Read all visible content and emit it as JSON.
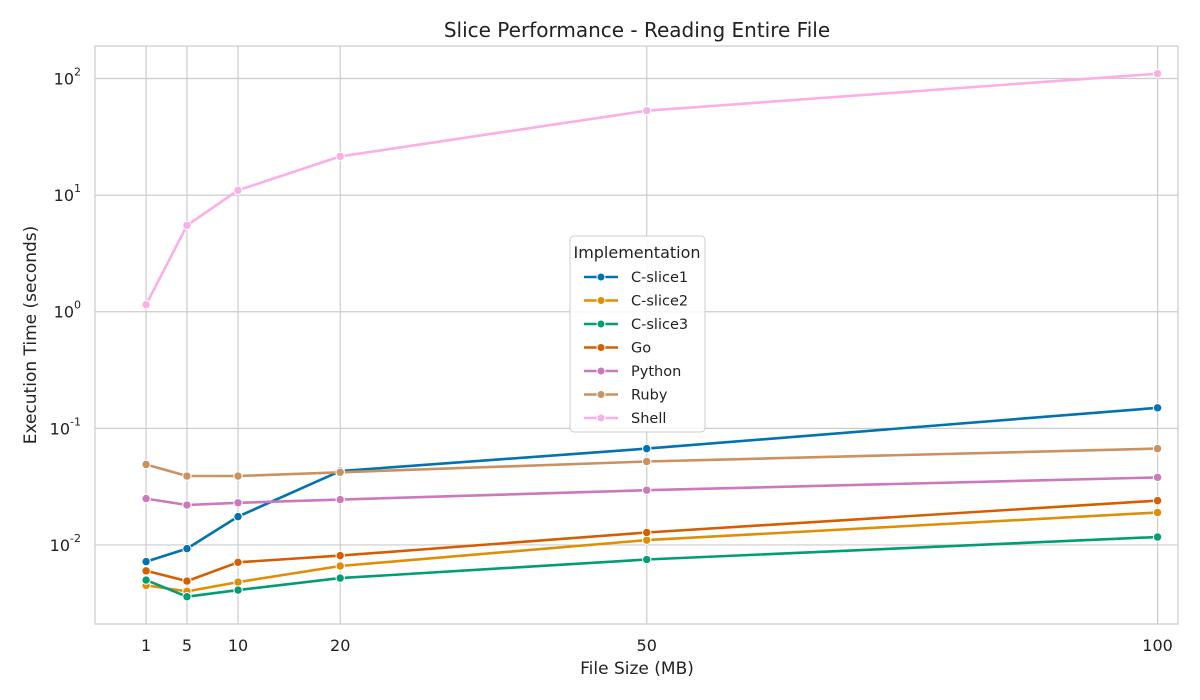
{
  "chart_data": {
    "type": "line",
    "title": "Slice Performance - Reading Entire File",
    "xlabel": "File Size (MB)",
    "ylabel": "Execution Time (seconds)",
    "x": [
      1,
      5,
      10,
      20,
      50,
      100
    ],
    "xlim": [
      -4,
      102
    ],
    "ylim": [
      0.0021,
      190
    ],
    "yscale": "log",
    "y_ticks": [
      {
        "base": "10",
        "exp": "-2",
        "value": 0.01
      },
      {
        "base": "10",
        "exp": "-1",
        "value": 0.1
      },
      {
        "base": "10",
        "exp": "0",
        "value": 1
      },
      {
        "base": "10",
        "exp": "1",
        "value": 10
      },
      {
        "base": "10",
        "exp": "2",
        "value": 100
      }
    ],
    "x_ticks": [
      "1",
      "5",
      "10",
      "20",
      "50",
      "100"
    ],
    "grid": true,
    "legend": {
      "title": "Implementation",
      "placement": "center"
    },
    "series": [
      {
        "name": "C-slice1",
        "color": "#0173b2",
        "values": [
          0.0072,
          0.0093,
          0.0175,
          0.043,
          0.067,
          0.15
        ]
      },
      {
        "name": "C-slice2",
        "color": "#de8f05",
        "values": [
          0.0045,
          0.004,
          0.0048,
          0.0066,
          0.011,
          0.019
        ]
      },
      {
        "name": "C-slice3",
        "color": "#029e73",
        "values": [
          0.005,
          0.0036,
          0.0041,
          0.0052,
          0.0075,
          0.0117
        ]
      },
      {
        "name": "Go",
        "color": "#d55e00",
        "values": [
          0.006,
          0.0049,
          0.0071,
          0.0081,
          0.0128,
          0.024
        ]
      },
      {
        "name": "Python",
        "color": "#cc78bc",
        "values": [
          0.025,
          0.022,
          0.023,
          0.0245,
          0.0295,
          0.038
        ]
      },
      {
        "name": "Ruby",
        "color": "#ca9161",
        "values": [
          0.049,
          0.039,
          0.039,
          0.042,
          0.052,
          0.067
        ]
      },
      {
        "name": "Shell",
        "color": "#fbafe4",
        "values": [
          1.15,
          5.5,
          11,
          21.5,
          53,
          110
        ]
      }
    ]
  }
}
